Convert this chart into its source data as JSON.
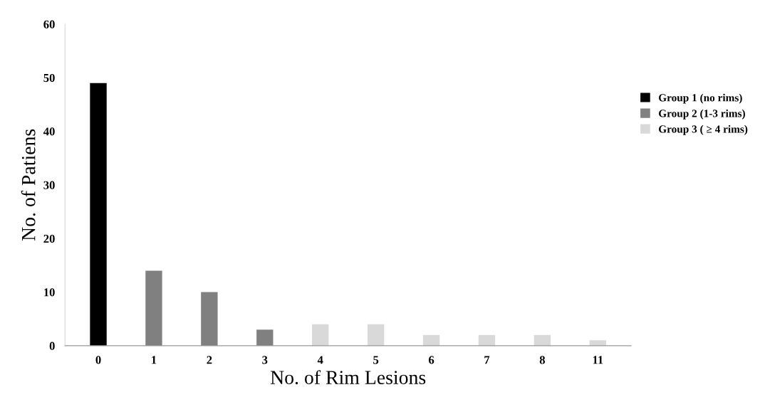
{
  "chart_data": {
    "type": "bar",
    "xlabel": "No. of Rim Lesions",
    "ylabel": "No. of Patiens",
    "categories": [
      "0",
      "1",
      "2",
      "3",
      "4",
      "5",
      "6",
      "7",
      "8",
      "11"
    ],
    "series": [
      {
        "name": "Group 1 (no rims)",
        "color": "#000000",
        "values": [
          49,
          null,
          null,
          null,
          null,
          null,
          null,
          null,
          null,
          null
        ]
      },
      {
        "name": "Group 2 (1-3 rims)",
        "color": "#808080",
        "values": [
          null,
          14,
          10,
          3,
          null,
          null,
          null,
          null,
          null,
          null
        ]
      },
      {
        "name": "Group 3 ( ≥ 4 rims)",
        "color": "#d9d9d9",
        "values": [
          null,
          null,
          null,
          null,
          4,
          4,
          2,
          2,
          2,
          1
        ]
      }
    ],
    "ylim": [
      0,
      60
    ],
    "yticks": [
      0,
      10,
      20,
      30,
      40,
      50,
      60
    ],
    "grid": false,
    "legend": "right"
  }
}
